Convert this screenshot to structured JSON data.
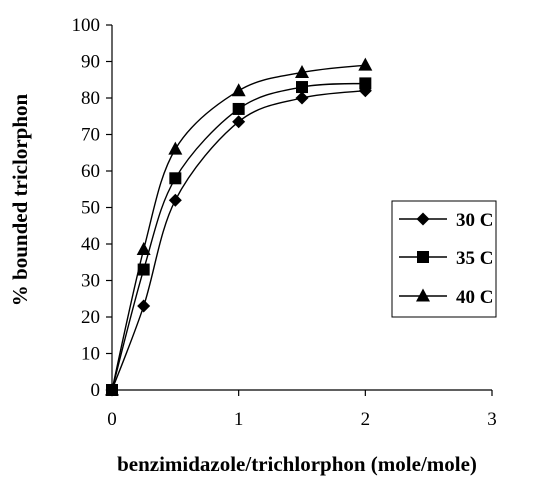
{
  "chart_data": {
    "type": "line",
    "title": "",
    "xlabel": "benzimidazole/trichlorphon (mole/mole)",
    "ylabel": "% bounded triclorphon",
    "xlim": [
      0,
      3
    ],
    "ylim": [
      0,
      100
    ],
    "x_ticks": [
      "0",
      "1",
      "2",
      "3"
    ],
    "y_ticks": [
      "0",
      "10",
      "20",
      "30",
      "40",
      "50",
      "60",
      "70",
      "80",
      "90",
      "100"
    ],
    "grid": false,
    "legend_position": "right",
    "smooth": true,
    "series": [
      {
        "name": "30 C",
        "marker": "diamond",
        "x": [
          0,
          0.25,
          0.5,
          1,
          1.5,
          2
        ],
        "y": [
          0,
          23,
          52,
          73.5,
          80,
          82
        ]
      },
      {
        "name": "35 C",
        "marker": "square",
        "x": [
          0,
          0.25,
          0.5,
          1,
          1.5,
          2
        ],
        "y": [
          0,
          33,
          58,
          77,
          83,
          84
        ]
      },
      {
        "name": "40 C",
        "marker": "triangle",
        "x": [
          0,
          0.25,
          0.5,
          1,
          1.5,
          2
        ],
        "y": [
          0,
          38.5,
          66,
          82,
          87,
          89
        ]
      }
    ]
  }
}
